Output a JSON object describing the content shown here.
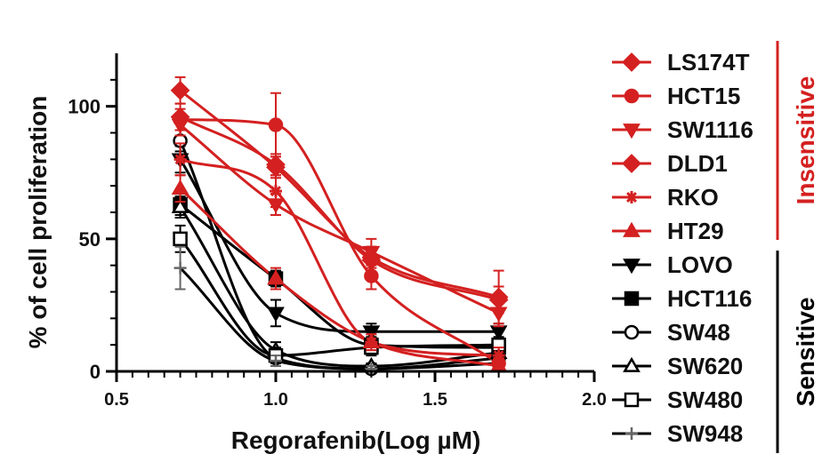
{
  "chart_data": {
    "type": "scatter",
    "title": "",
    "xlabel": "Regorafenib(Log µM)",
    "ylabel": "% of cell proliferation",
    "xlim": [
      0.5,
      2.0
    ],
    "ylim": [
      0,
      120
    ],
    "xticks": [
      "0.5",
      "1.0",
      "1.5",
      "2.0"
    ],
    "yticks": [
      "0",
      "50",
      "100"
    ],
    "x": [
      0.7,
      1.0,
      1.3,
      1.7
    ],
    "fitted_curves": true,
    "legend_position": "right",
    "groups": [
      {
        "label": "Insensitive",
        "color": "#d42020"
      },
      {
        "label": "Sensitive",
        "color": "#000000"
      }
    ],
    "series": [
      {
        "name": "LS174T",
        "group": "Insensitive",
        "marker": "diamond-filled",
        "color": "#d42020",
        "values": [
          96,
          78,
          42,
          27
        ],
        "errors": [
          5,
          4,
          5,
          5
        ]
      },
      {
        "name": "HCT15",
        "group": "Insensitive",
        "marker": "circle-filled",
        "color": "#d42020",
        "values": [
          95,
          93,
          36,
          3
        ],
        "errors": [
          4,
          12,
          5,
          2
        ]
      },
      {
        "name": "SW1116",
        "group": "Insensitive",
        "marker": "triangle-down-filled",
        "color": "#d42020",
        "values": [
          93,
          63,
          45,
          22
        ],
        "errors": [
          4,
          4,
          5,
          5
        ]
      },
      {
        "name": "DLD1",
        "group": "Insensitive",
        "marker": "diamond-filled",
        "color": "#d42020",
        "values": [
          106,
          77,
          43,
          28
        ],
        "errors": [
          5,
          4,
          4,
          10
        ]
      },
      {
        "name": "RKO",
        "group": "Insensitive",
        "marker": "asterisk",
        "color": "#d42020",
        "values": [
          80,
          68,
          11,
          6
        ],
        "errors": [
          6,
          6,
          3,
          3
        ]
      },
      {
        "name": "HT29",
        "group": "Insensitive",
        "marker": "triangle-up-filled",
        "color": "#d42020",
        "values": [
          69,
          35,
          11,
          2
        ],
        "errors": [
          5,
          4,
          3,
          2
        ]
      },
      {
        "name": "LOVO",
        "group": "Sensitive",
        "marker": "triangle-down-filled",
        "color": "#000000",
        "values": [
          80,
          22,
          15,
          15
        ],
        "errors": [
          5,
          5,
          3,
          3
        ]
      },
      {
        "name": "HCT116",
        "group": "Sensitive",
        "marker": "square-filled",
        "color": "#000000",
        "values": [
          63,
          35,
          10,
          9
        ],
        "errors": [
          4,
          3,
          3,
          3
        ]
      },
      {
        "name": "SW48",
        "group": "Sensitive",
        "marker": "circle-open",
        "color": "#000000",
        "values": [
          87,
          5,
          1,
          5
        ],
        "errors": [
          4,
          3,
          1,
          2
        ]
      },
      {
        "name": "SW620",
        "group": "Sensitive",
        "marker": "triangle-up-open",
        "color": "#000000",
        "values": [
          62,
          8,
          2,
          7
        ],
        "errors": [
          4,
          3,
          1,
          2
        ]
      },
      {
        "name": "SW480",
        "group": "Sensitive",
        "marker": "square-open",
        "color": "#000000",
        "values": [
          50,
          6,
          9,
          10
        ],
        "errors": [
          5,
          3,
          3,
          3
        ]
      },
      {
        "name": "SW948",
        "group": "Sensitive",
        "marker": "plus",
        "color": "#666666",
        "values": [
          39,
          4,
          1,
          3
        ],
        "errors": [
          8,
          2,
          1,
          2
        ]
      }
    ]
  }
}
